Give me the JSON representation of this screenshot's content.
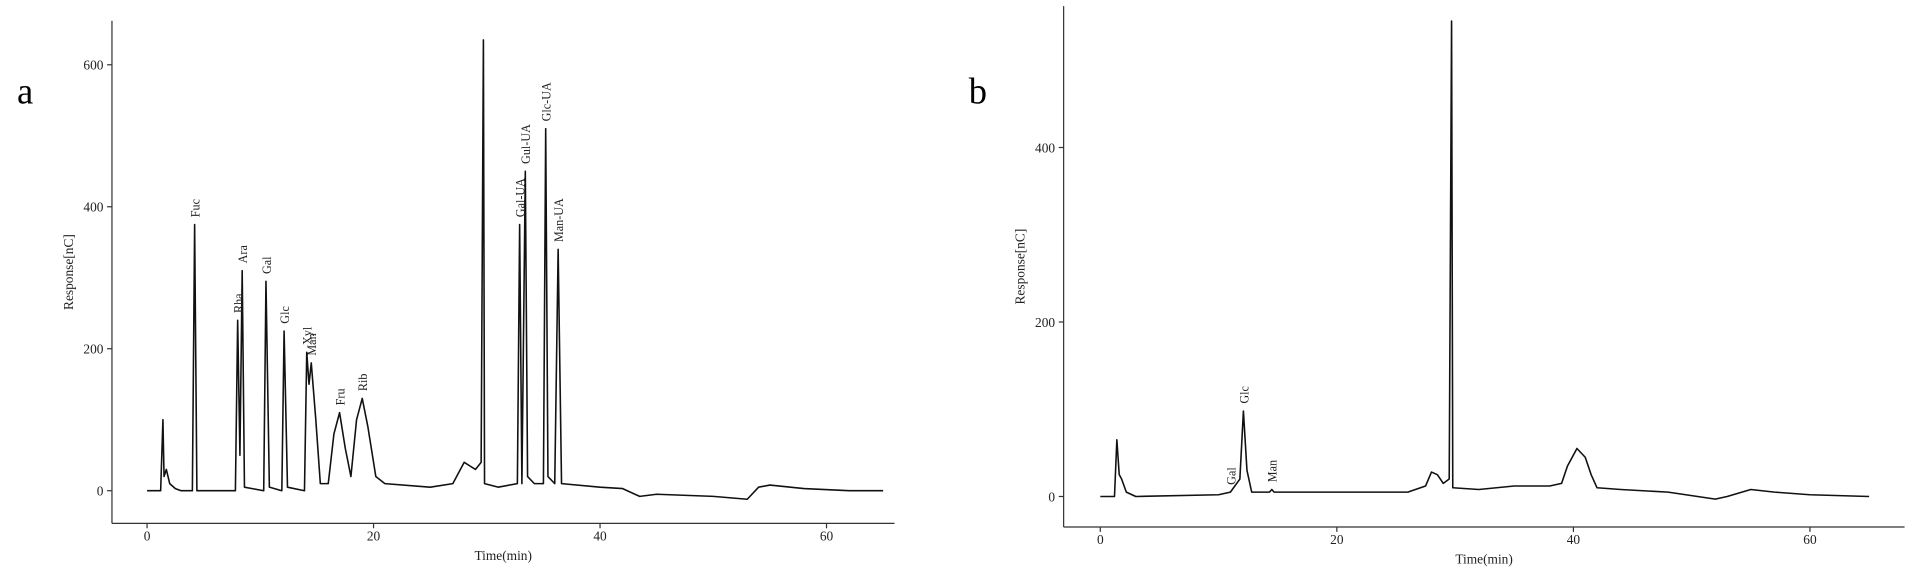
{
  "chart_data": [
    {
      "type": "line",
      "panel_label": "a",
      "x_label": "Time(min)",
      "y_label": "Response[nC]",
      "color": "#111111",
      "xlim": [
        -3.1,
        66
      ],
      "ylim": [
        -46,
        662
      ],
      "xticks": [
        0,
        20,
        40,
        60
      ],
      "yticks": [
        0,
        200,
        400,
        600
      ],
      "x": [
        0,
        1.2,
        1.4,
        1.5,
        1.7,
        2,
        2.5,
        3,
        4.0,
        4.2,
        4.4,
        7.8,
        8.0,
        8.2,
        8.4,
        8.6,
        10.3,
        10.5,
        10.8,
        11.9,
        12.1,
        12.4,
        13.9,
        14.1,
        14.3,
        14.5,
        14.9,
        15.3,
        16,
        16.5,
        17,
        17.5,
        18,
        18.5,
        19,
        19.5,
        20.2,
        21,
        25,
        27,
        28,
        28.5,
        29,
        29.5,
        29.7,
        29.8,
        31,
        32.7,
        32.9,
        33.1,
        33.4,
        33.6,
        34.2,
        35,
        35.2,
        35.4,
        36,
        36.3,
        36.6,
        40,
        42,
        43.5,
        45,
        50,
        53,
        54,
        55,
        58,
        62,
        65
      ],
      "values": [
        0,
        0,
        100,
        20,
        30,
        10,
        3,
        0,
        0,
        375,
        0,
        0,
        240,
        50,
        310,
        5,
        0,
        295,
        5,
        0,
        225,
        5,
        0,
        195,
        150,
        180,
        100,
        10,
        10,
        80,
        110,
        60,
        20,
        100,
        130,
        90,
        20,
        10,
        5,
        10,
        40,
        35,
        30,
        40,
        635,
        10,
        5,
        10,
        375,
        10,
        450,
        20,
        10,
        10,
        510,
        20,
        10,
        340,
        10,
        5,
        3,
        -8,
        -5,
        -8,
        -12,
        5,
        8,
        3,
        0,
        0
      ],
      "annotations": [
        {
          "text": "Fuc",
          "x": 4.2,
          "y": 375
        },
        {
          "text": "Rha",
          "x": 8.0,
          "y": 240
        },
        {
          "text": "Ara",
          "x": 8.4,
          "y": 310
        },
        {
          "text": "Gal",
          "x": 10.5,
          "y": 295
        },
        {
          "text": "Glc",
          "x": 12.1,
          "y": 225
        },
        {
          "text": "Xyl",
          "x": 14.1,
          "y": 195
        },
        {
          "text": "Man",
          "x": 14.5,
          "y": 180
        },
        {
          "text": "Fru",
          "x": 17,
          "y": 110
        },
        {
          "text": "Rib",
          "x": 19,
          "y": 130
        },
        {
          "text": "Gal-UA",
          "x": 32.9,
          "y": 375
        },
        {
          "text": "Gul-UA",
          "x": 33.4,
          "y": 450
        },
        {
          "text": "Glc-UA",
          "x": 35.2,
          "y": 510
        },
        {
          "text": "Man-UA",
          "x": 36.3,
          "y": 340
        }
      ]
    },
    {
      "type": "line",
      "panel_label": "b",
      "x_label": "Time(min)",
      "y_label": "Response[nC]",
      "color": "#111111",
      "xlim": [
        -3.1,
        68
      ],
      "ylim": [
        -35,
        562
      ],
      "xticks": [
        0,
        20,
        40,
        60
      ],
      "yticks": [
        0,
        200,
        400
      ],
      "x": [
        0,
        1.2,
        1.4,
        1.6,
        1.8,
        2.2,
        3,
        10,
        11,
        11.8,
        12.1,
        12.4,
        12.8,
        14.3,
        14.5,
        14.7,
        20,
        26,
        27.5,
        28,
        28.5,
        29,
        29.5,
        29.7,
        29.8,
        32,
        35,
        38,
        39,
        39.5,
        40.3,
        41,
        41.5,
        42,
        44,
        48,
        52,
        53,
        55,
        57,
        60,
        65
      ],
      "values": [
        0,
        0,
        65,
        25,
        20,
        5,
        0,
        2,
        5,
        20,
        98,
        30,
        5,
        5,
        8,
        5,
        5,
        5,
        12,
        28,
        25,
        15,
        20,
        545,
        10,
        8,
        12,
        12,
        15,
        35,
        55,
        45,
        25,
        10,
        8,
        5,
        -3,
        0,
        8,
        5,
        2,
        0
      ],
      "annotations": [
        {
          "text": "Gal",
          "x": 11,
          "y": 5
        },
        {
          "text": "Glc",
          "x": 12.1,
          "y": 98
        },
        {
          "text": "Man",
          "x": 14.5,
          "y": 8
        }
      ]
    }
  ]
}
